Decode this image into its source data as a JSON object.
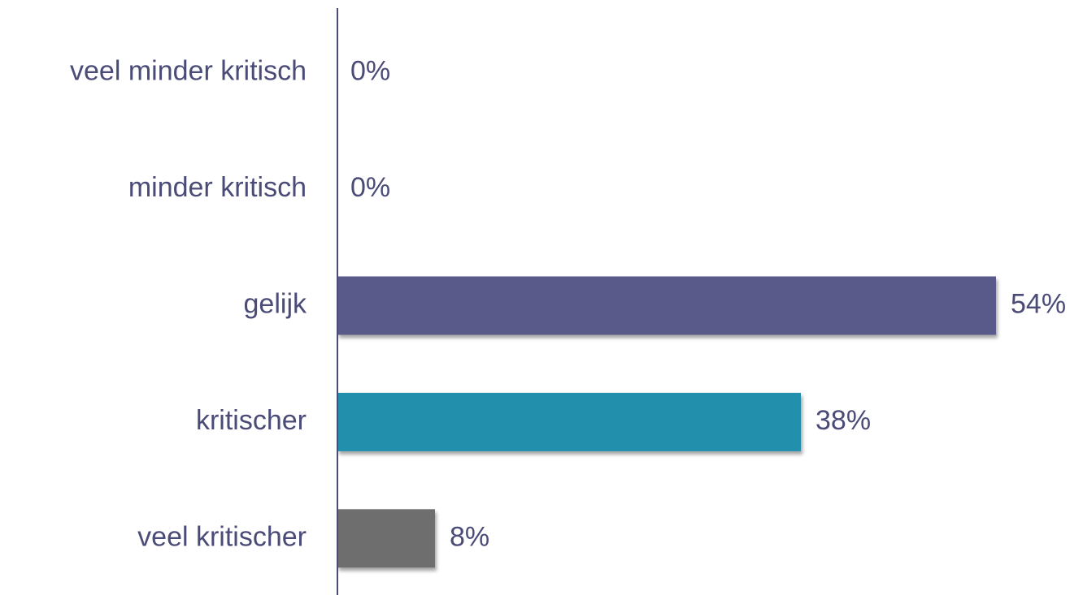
{
  "chart_data": {
    "type": "bar",
    "orientation": "horizontal",
    "categories": [
      "veel minder kritisch",
      "minder kritisch",
      "gelijk",
      "kritischer",
      "veel kritischer"
    ],
    "values": [
      0,
      0,
      54,
      38,
      8
    ],
    "value_labels": [
      "0%",
      "0%",
      "54%",
      "38%",
      "8%"
    ],
    "colors": [
      "#5a5a8a",
      "#5a5a8a",
      "#5a5a8a",
      "#2190ad",
      "#6e6e6e"
    ]
  }
}
